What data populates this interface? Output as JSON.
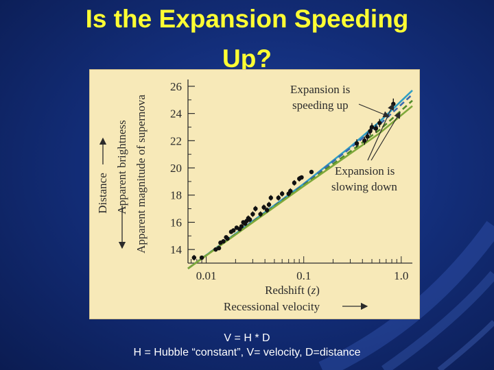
{
  "slide": {
    "title_line1": "Is the Expansion Speeding",
    "title_line2": "Up?",
    "equation": "V = H * D",
    "definition": "H = Hubble “constant”,   V= velocity,  D=distance",
    "colors": {
      "background": "#132e7a",
      "title": "#ffff33",
      "caption": "#ffffff",
      "figure_bg": "#f7e9b8",
      "speeding_up": "#2f9fc4",
      "speeding_up_dashed": "#3a6ab0",
      "slowing_down": "#7fa83a",
      "slowing_down_dashed": "#4f8a2a",
      "points": "#111111"
    }
  },
  "chart_data": {
    "type": "scatter",
    "xscale": "log",
    "xlim": [
      0.0065,
      1.3
    ],
    "ylim": [
      13.0,
      26.5
    ],
    "x_ticks": [
      0.01,
      0.1,
      1.0
    ],
    "x_tick_labels": [
      "0.01",
      "0.1",
      "1.0"
    ],
    "y_ticks": [
      14,
      16,
      18,
      20,
      22,
      24,
      26
    ],
    "y_tick_labels": [
      "14",
      "16",
      "18",
      "20",
      "22",
      "24",
      "26"
    ],
    "xlabel": "Redshift (z)",
    "xlabel_prefix": "Redshift (",
    "xlabel_var": "z",
    "xlabel_suffix": ")",
    "xlabel2": "Recessional velocity",
    "ylabel_outer": "Distance",
    "ylabel_mid": "Apparent brightness",
    "ylabel_inner": "Apparent magnitude of supernova",
    "annotations": {
      "speeding_line1": "Expansion is",
      "speeding_line2": "speeding up",
      "slowing_line1": "Expansion is",
      "slowing_line2": "slowing down"
    },
    "grid": false,
    "series": [
      {
        "kind": "points",
        "x": [
          0.0075,
          0.009,
          0.0125,
          0.0135,
          0.014,
          0.015,
          0.016,
          0.0165,
          0.018,
          0.019,
          0.0205,
          0.022,
          0.023,
          0.024,
          0.025,
          0.026,
          0.027,
          0.028,
          0.03,
          0.032,
          0.036,
          0.039,
          0.042,
          0.044,
          0.046,
          0.055,
          0.06,
          0.07,
          0.073,
          0.08,
          0.09,
          0.095,
          0.12,
          0.35,
          0.42,
          0.45,
          0.48,
          0.5,
          0.55,
          0.6,
          0.83
        ],
        "y": [
          13.4,
          13.4,
          14.0,
          14.1,
          14.5,
          14.6,
          14.9,
          14.8,
          15.3,
          15.4,
          15.6,
          15.5,
          15.7,
          16.0,
          15.9,
          16.1,
          16.3,
          16.2,
          16.6,
          17.0,
          16.6,
          17.1,
          16.9,
          17.3,
          17.8,
          17.8,
          18.1,
          18.1,
          18.3,
          18.9,
          19.2,
          19.3,
          19.7,
          21.8,
          22.0,
          22.3,
          22.7,
          23.0,
          22.9,
          23.3,
          24.7
        ],
        "yerr": [
          0.2,
          0.15,
          0.15,
          0.15,
          0.15,
          0.15,
          0.15,
          0.15,
          0.15,
          0.15,
          0.15,
          0.15,
          0.15,
          0.15,
          0.15,
          0.15,
          0.2,
          0.2,
          0.2,
          0.2,
          0.2,
          0.2,
          0.2,
          0.2,
          0.2,
          0.2,
          0.2,
          0.2,
          0.2,
          0.2,
          0.2,
          0.15,
          0.15,
          0.3,
          0.3,
          0.3,
          0.3,
          0.3,
          0.3,
          0.3,
          0.4
        ]
      },
      {
        "kind": "line",
        "style": "solid",
        "color": "#2f9fc4",
        "x": [
          0.0065,
          0.1,
          0.3,
          0.6,
          1.3
        ],
        "y": [
          12.6,
          18.83,
          21.55,
          23.4,
          25.7
        ]
      },
      {
        "kind": "line",
        "style": "dashed",
        "color": "#3a6ab0",
        "x": [
          0.0065,
          0.1,
          0.3,
          0.6,
          1.3
        ],
        "y": [
          12.6,
          18.79,
          21.45,
          23.2,
          25.4
        ]
      },
      {
        "kind": "line",
        "style": "dashed",
        "color": "#4f8a2a",
        "x": [
          0.0065,
          0.1,
          0.3,
          0.6,
          1.3
        ],
        "y": [
          12.6,
          18.72,
          21.2,
          22.8,
          24.95
        ]
      },
      {
        "kind": "line",
        "style": "solid",
        "color": "#7fa83a",
        "x": [
          0.0065,
          0.1,
          0.3,
          0.6,
          1.3
        ],
        "y": [
          12.6,
          18.66,
          21.05,
          22.55,
          24.55
        ]
      }
    ]
  }
}
